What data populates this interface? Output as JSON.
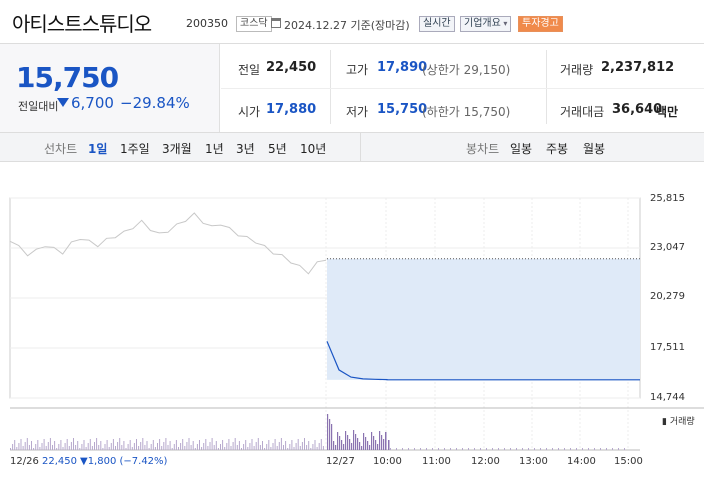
{
  "header": {
    "stock_name": "아티스트스튜디오",
    "stock_code": "200350",
    "market": "코스닥",
    "date": "2024.12.27",
    "basis": "기준(장마감)",
    "realtime": "실시간",
    "company_overview": "기업개요",
    "warning": "투자경고"
  },
  "price": {
    "current": "15,750",
    "change_label": "전일대비",
    "change_amount": "6,700",
    "change_percent": "−29.84%"
  },
  "stats": {
    "prev_label": "전일",
    "prev_value": "22,450",
    "high_label": "고가",
    "high_value": "17,890",
    "upper_limit": "(상한가 29,150)",
    "volume_label": "거래량",
    "volume_value": "2,237,812",
    "open_label": "시가",
    "open_value": "17,880",
    "low_label": "저가",
    "low_value": "15,750",
    "lower_limit": "(하한가 15,750)",
    "amount_label": "거래대금",
    "amount_value": "36,640",
    "amount_unit": "백만"
  },
  "tabs": {
    "line_chart_title": "선차트",
    "periods": [
      "1일",
      "1주일",
      "3개월",
      "1년",
      "3년",
      "5년",
      "10년"
    ],
    "active_period": "1일",
    "candle_chart_title": "봉차트",
    "candles": [
      "일봉",
      "주봉",
      "월봉"
    ]
  },
  "colors": {
    "accent_blue": "#1a55c4",
    "down_blue": "#1a55c4",
    "warning_orange": "#f08a4b",
    "fill_area": "#dfeaf8",
    "volume_purple": "#8a73b0"
  },
  "chart_data": {
    "type": "line",
    "y_ticks": [
      "25,815",
      "23,047",
      "20,279",
      "17,511",
      "14,744"
    ],
    "ylim": [
      14744,
      25815
    ],
    "x_ticks": [
      "12/27",
      "10:00",
      "11:00",
      "12:00",
      "13:00",
      "14:00",
      "15:00"
    ],
    "prev_day_label": "12/26",
    "prev_day_close": "22,450",
    "prev_day_change": "▼1,800 (−7.42%)",
    "volume_label": "거래량",
    "series": [
      {
        "values_prev_day": [
          23500,
          23100,
          22700,
          22900,
          23200,
          23000,
          22800,
          23300,
          23600,
          23400,
          23200,
          23500,
          23700,
          23900,
          24200,
          24500,
          24100,
          23800,
          24000,
          24300,
          24600,
          24900,
          24500,
          24200,
          24400,
          24100,
          23800,
          23600,
          23400,
          23100,
          22800,
          22600,
          22300,
          22000,
          21700,
          22200,
          22450
        ],
        "values_today": [
          17880,
          16300,
          15900,
          15800,
          15780,
          15760,
          15750,
          15750,
          15750,
          15750,
          15750,
          15750,
          15750,
          15750,
          15750,
          15750
        ]
      }
    ]
  }
}
